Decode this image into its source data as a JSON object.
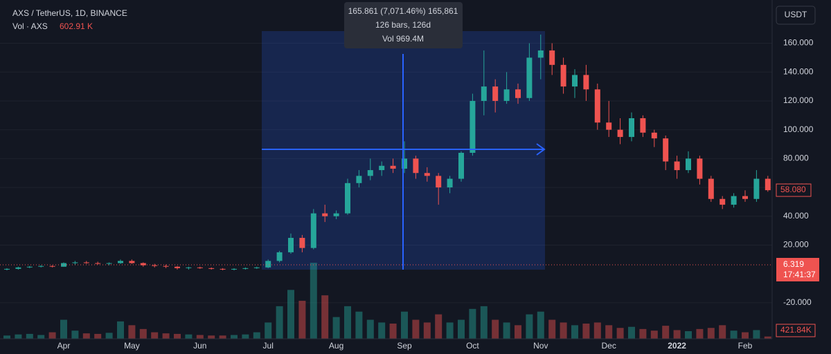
{
  "header": {
    "symbol": "AXS / TetherUS, 1D, BINANCE",
    "vol_label": "Vol · AXS",
    "vol_value": "602.91 K"
  },
  "tooltip": {
    "lines": [
      "165.861 (7,071.46%) 165,861",
      "126 bars, 126d",
      "Vol 969.4M"
    ]
  },
  "currency": "USDT",
  "chart_data": {
    "type": "candlestick",
    "categories": [
      null,
      null,
      null,
      null,
      null,
      "Apr",
      null,
      null,
      null,
      null,
      null,
      "May",
      null,
      null,
      null,
      null,
      null,
      "Jun",
      null,
      null,
      null,
      null,
      null,
      "Jul",
      null,
      null,
      null,
      null,
      null,
      "Aug",
      null,
      null,
      null,
      null,
      null,
      "Sep",
      null,
      null,
      null,
      null,
      null,
      "Oct",
      null,
      null,
      null,
      null,
      null,
      "Nov",
      null,
      null,
      null,
      null,
      null,
      "Dec",
      null,
      null,
      null,
      null,
      null,
      "2022",
      null,
      null,
      null,
      null,
      null,
      "Feb",
      null,
      null
    ],
    "open": [
      3,
      3.5,
      4.5,
      5,
      5.5,
      5,
      7.5,
      8,
      7.5,
      7,
      7.5,
      9,
      7.5,
      6,
      5.5,
      5,
      4,
      4.5,
      4,
      3.5,
      3,
      3.5,
      4,
      4.5,
      9,
      15,
      25,
      18,
      42,
      40,
      42,
      63,
      68,
      72,
      75,
      73,
      80,
      70,
      68,
      60,
      66,
      84,
      120,
      130,
      120,
      128,
      122,
      150,
      155,
      145,
      130,
      138,
      128,
      105,
      100,
      95,
      108,
      98,
      94,
      78,
      72,
      80,
      66,
      52,
      48,
      54,
      52,
      66
    ],
    "high": [
      4,
      5,
      5.5,
      6,
      6,
      8,
      9,
      9,
      8.5,
      8,
      10,
      10,
      8,
      7,
      6.5,
      5.5,
      5,
      5,
      4.5,
      4,
      4,
      4.5,
      5,
      10,
      16,
      28,
      27,
      45,
      48,
      44,
      66,
      72,
      80,
      78,
      80,
      92,
      82,
      74,
      70,
      68,
      85,
      125,
      155,
      135,
      140,
      132,
      160,
      166,
      160,
      150,
      142,
      145,
      132,
      120,
      108,
      112,
      110,
      100,
      96,
      82,
      85,
      82,
      68,
      54,
      56,
      58,
      72,
      68
    ],
    "low": [
      2.5,
      3,
      4,
      4.5,
      4.5,
      5,
      6.5,
      7,
      6.5,
      6,
      7,
      7,
      5,
      4.5,
      4,
      3,
      3,
      3.5,
      3,
      2.5,
      2.5,
      3,
      3.5,
      4,
      8,
      14,
      15,
      17,
      36,
      38,
      41,
      60,
      65,
      68,
      70,
      70,
      66,
      64,
      48,
      56,
      64,
      82,
      110,
      112,
      118,
      118,
      120,
      135,
      138,
      125,
      122,
      120,
      100,
      95,
      90,
      92,
      95,
      88,
      72,
      66,
      70,
      62,
      50,
      45,
      46,
      50,
      50,
      57
    ],
    "close": [
      3.5,
      4.5,
      5,
      5.5,
      5,
      7.5,
      8,
      7.5,
      7,
      7.5,
      9,
      7.5,
      6,
      5.5,
      5,
      4,
      4.5,
      4,
      3.5,
      3,
      3.5,
      4,
      4.5,
      9,
      15,
      25,
      18,
      42,
      40,
      42,
      63,
      68,
      72,
      75,
      73,
      80,
      70,
      68,
      60,
      66,
      84,
      120,
      130,
      120,
      128,
      122,
      150,
      155,
      145,
      130,
      138,
      128,
      105,
      100,
      95,
      108,
      98,
      94,
      78,
      72,
      80,
      66,
      52,
      48,
      54,
      52,
      66,
      58.08
    ],
    "volume": [
      600,
      800,
      900,
      700,
      1200,
      3500,
      1500,
      1000,
      900,
      1100,
      3200,
      2500,
      1800,
      1200,
      1000,
      900,
      800,
      700,
      600,
      600,
      700,
      800,
      1200,
      3000,
      6000,
      9000,
      7000,
      14000,
      8000,
      4000,
      6000,
      5000,
      3500,
      3000,
      2800,
      5000,
      3500,
      3000,
      4500,
      3000,
      3500,
      5500,
      6000,
      3500,
      3000,
      2500,
      4500,
      5000,
      3500,
      3000,
      2500,
      2800,
      3000,
      2500,
      2000,
      2200,
      1800,
      1500,
      2400,
      1600,
      1400,
      1800,
      2000,
      2500,
      1500,
      1200,
      1600,
      421.84
    ],
    "volume_label": "421.84K",
    "last_price_label": "58.080",
    "marker": {
      "value": 6.319,
      "label": "6.319"
    },
    "countdown": "17:41:37",
    "ylim": [
      -45,
      190
    ],
    "yticks": [
      {
        "value": 160,
        "label": "160.000"
      },
      {
        "value": 140,
        "label": "140.000"
      },
      {
        "value": 120,
        "label": "120.000"
      },
      {
        "value": 100,
        "label": "100.000"
      },
      {
        "value": 80,
        "label": "80.000"
      },
      {
        "value": 60,
        "label": "60.000"
      },
      {
        "value": 40,
        "label": "40.000"
      },
      {
        "value": 20,
        "label": "20.000"
      },
      {
        "value": -20,
        "label": "-20.000"
      }
    ],
    "up_color": "#26a69a",
    "down_color": "#ef5350",
    "grid": true
  }
}
